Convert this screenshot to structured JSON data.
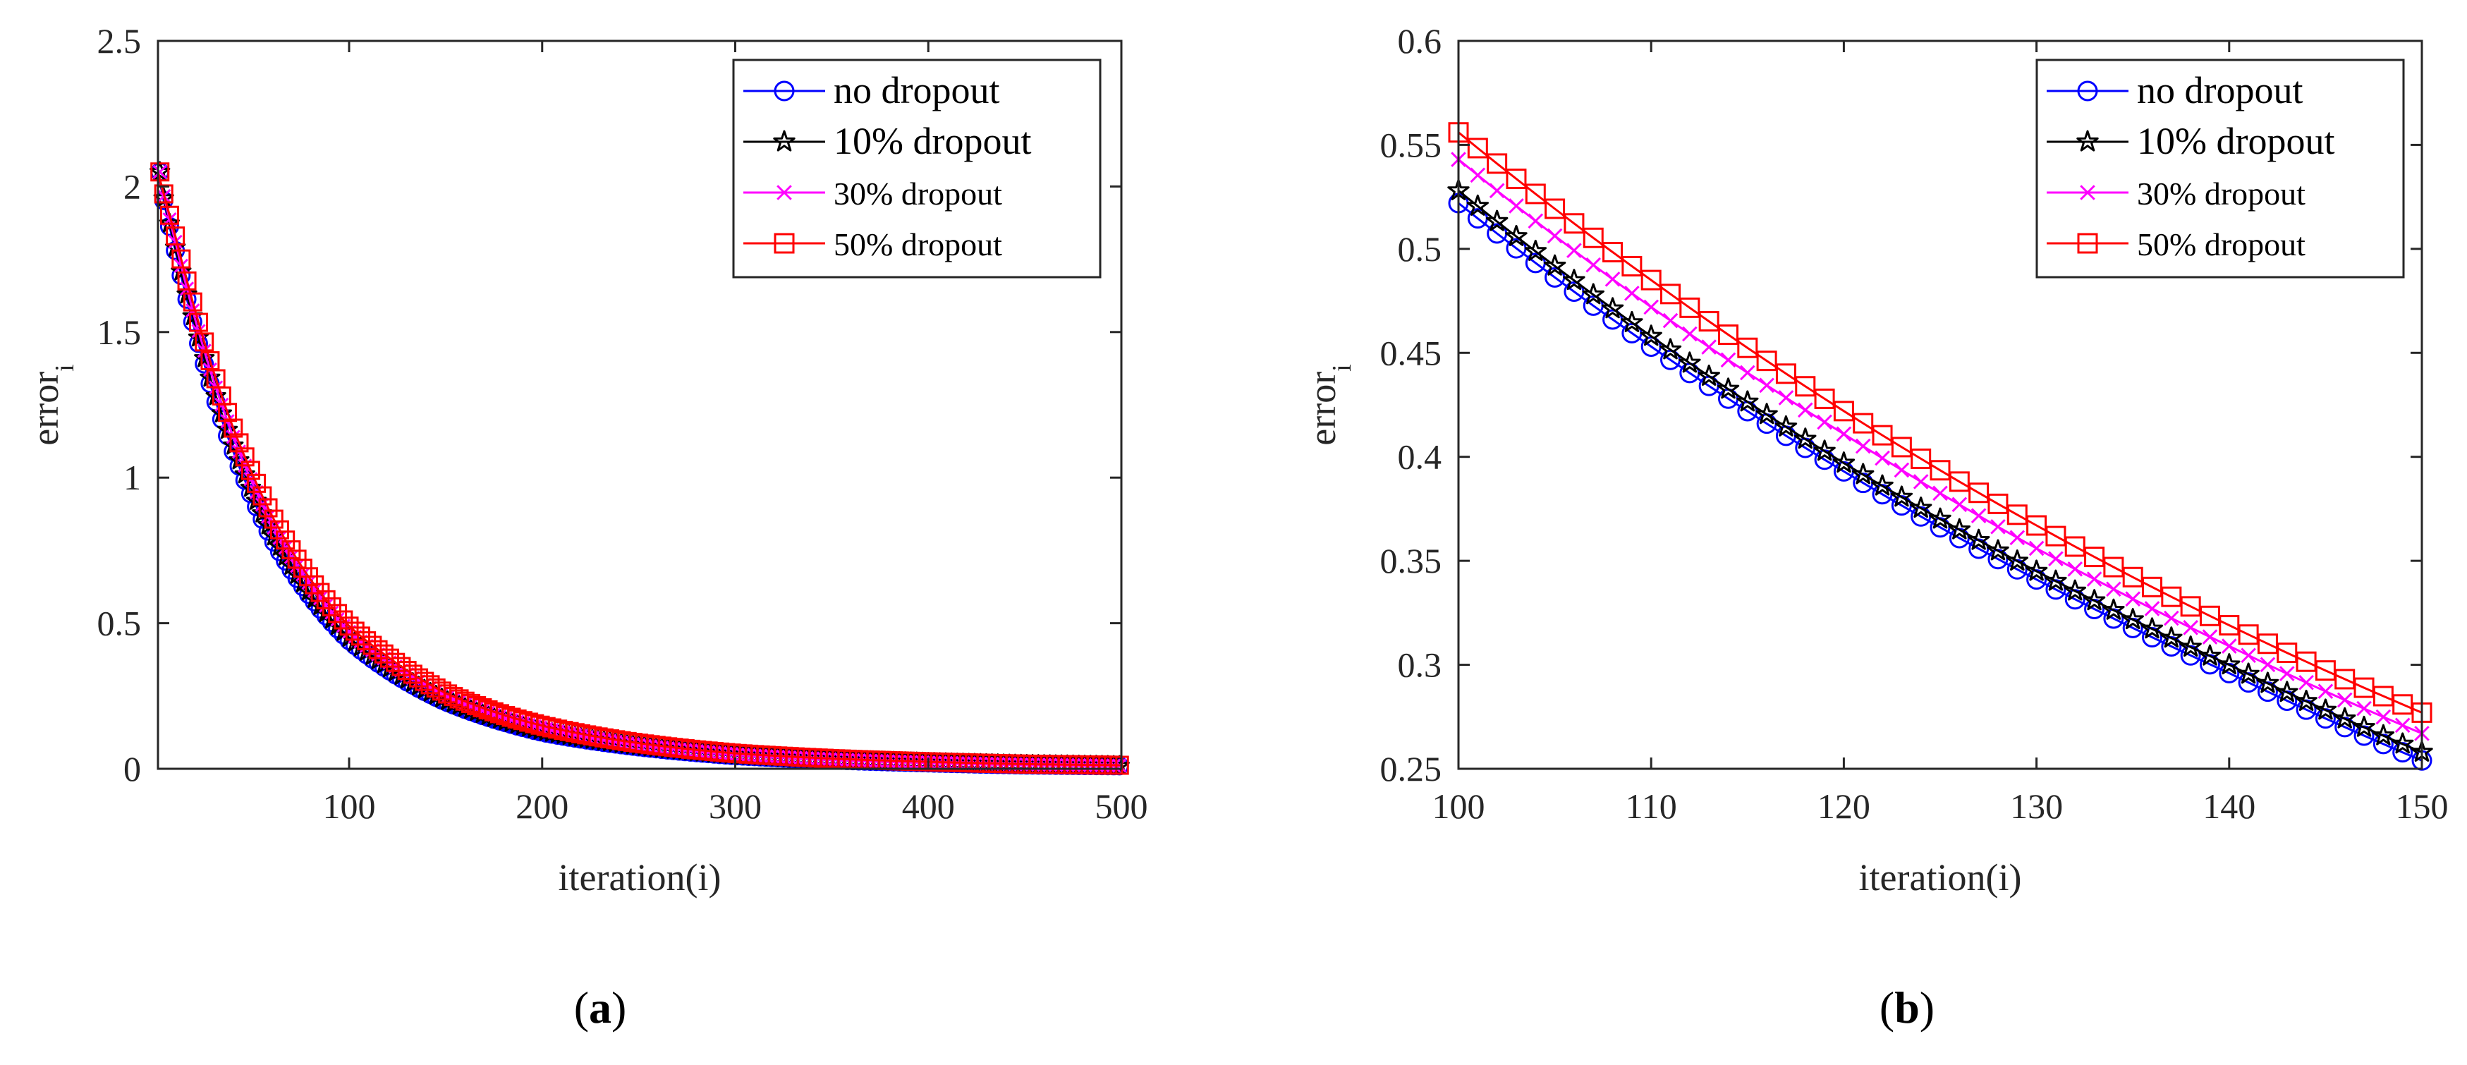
{
  "chart_data": [
    {
      "type": "line",
      "panel": "a",
      "caption": {
        "open": "(",
        "letter": "a",
        "close": ")"
      },
      "xlabel": "iteration(i)",
      "ylabel": {
        "main": "error",
        "sub": "i"
      },
      "xlim": [
        1,
        500
      ],
      "ylim": [
        0,
        2.5
      ],
      "xticks": [
        100,
        200,
        300,
        400,
        500
      ],
      "xtick_labels": [
        "100",
        "200",
        "300",
        "400",
        "500"
      ],
      "yticks": [
        0,
        0.5,
        1,
        1.5,
        2,
        2.5
      ],
      "ytick_labels": [
        "0",
        "0.5",
        "1",
        "1.5",
        "2",
        "2.5"
      ],
      "legend_position": "top-right",
      "x": [
        1,
        5,
        10,
        20,
        30,
        40,
        50,
        60,
        80,
        100,
        120,
        150,
        180,
        200,
        250,
        300,
        350,
        400,
        450,
        500
      ],
      "series": [
        {
          "name": "no dropout",
          "color": "#0000ff",
          "marker": "circle",
          "values": [
            2.05,
            1.92,
            1.78,
            1.51,
            1.28,
            1.09,
            0.93,
            0.79,
            0.59,
            0.44,
            0.34,
            0.23,
            0.16,
            0.125,
            0.075,
            0.045,
            0.03,
            0.02,
            0.013,
            0.01
          ]
        },
        {
          "name": "10% dropout",
          "color": "#000000",
          "marker": "star",
          "values": [
            2.05,
            1.93,
            1.79,
            1.53,
            1.3,
            1.11,
            0.95,
            0.81,
            0.6,
            0.45,
            0.35,
            0.235,
            0.165,
            0.13,
            0.078,
            0.047,
            0.031,
            0.021,
            0.014,
            0.01
          ]
        },
        {
          "name": "30% dropout",
          "color": "#ff00ff",
          "marker": "x",
          "values": [
            2.05,
            1.94,
            1.81,
            1.55,
            1.33,
            1.14,
            0.98,
            0.84,
            0.63,
            0.47,
            0.37,
            0.25,
            0.175,
            0.14,
            0.082,
            0.05,
            0.033,
            0.022,
            0.015,
            0.011
          ]
        },
        {
          "name": "50% dropout",
          "color": "#ff0000",
          "marker": "square",
          "values": [
            2.05,
            1.95,
            1.83,
            1.58,
            1.36,
            1.17,
            1.01,
            0.87,
            0.65,
            0.49,
            0.385,
            0.26,
            0.185,
            0.148,
            0.088,
            0.053,
            0.035,
            0.024,
            0.016,
            0.012
          ]
        }
      ]
    },
    {
      "type": "line",
      "panel": "b",
      "caption": {
        "open": "(",
        "letter": "b",
        "close": ")"
      },
      "xlabel": "iteration(i)",
      "ylabel": {
        "main": "error",
        "sub": "i"
      },
      "xlim": [
        100,
        150
      ],
      "ylim": [
        0.25,
        0.6
      ],
      "xticks": [
        100,
        110,
        120,
        130,
        140,
        150
      ],
      "xtick_labels": [
        "100",
        "110",
        "120",
        "130",
        "140",
        "150"
      ],
      "yticks": [
        0.25,
        0.3,
        0.35,
        0.4,
        0.45,
        0.5,
        0.55,
        0.6
      ],
      "ytick_labels": [
        "0.25",
        "0.3",
        "0.35",
        "0.4",
        "0.45",
        "0.5",
        "0.55",
        "0.6"
      ],
      "legend_position": "top-right",
      "x": [
        100,
        110,
        120,
        130,
        140,
        150
      ],
      "series": [
        {
          "name": "no dropout",
          "color": "#0000ff",
          "marker": "circle",
          "values": [
            0.522,
            0.453,
            0.393,
            0.341,
            0.296,
            0.254
          ]
        },
        {
          "name": "10% dropout",
          "color": "#000000",
          "marker": "star",
          "values": [
            0.528,
            0.458,
            0.397,
            0.345,
            0.3,
            0.258
          ]
        },
        {
          "name": "30% dropout",
          "color": "#ff00ff",
          "marker": "x",
          "values": [
            0.543,
            0.472,
            0.411,
            0.356,
            0.309,
            0.267
          ]
        },
        {
          "name": "50% dropout",
          "color": "#ff0000",
          "marker": "square",
          "values": [
            0.556,
            0.485,
            0.422,
            0.367,
            0.319,
            0.277
          ]
        }
      ]
    }
  ]
}
